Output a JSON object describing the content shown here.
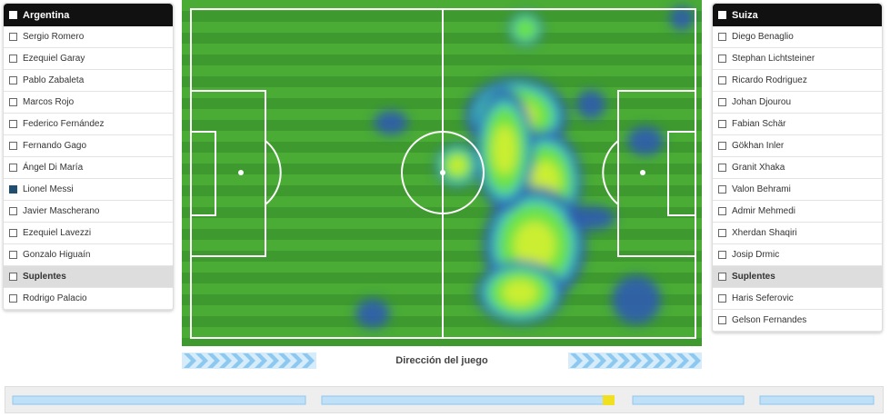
{
  "home": {
    "team": "Argentina",
    "players": [
      "Sergio Romero",
      "Ezequiel Garay",
      "Pablo Zabaleta",
      "Marcos Rojo",
      "Federico Fernández",
      "Fernando Gago",
      "Ángel Di María",
      "Lionel Messi",
      "Javier Mascherano",
      "Ezequiel Lavezzi",
      "Gonzalo Higuaín"
    ],
    "subs_label": "Suplentes",
    "subs": [
      "Rodrigo Palacio"
    ]
  },
  "away": {
    "team": "Suiza",
    "players": [
      "Diego Benaglio",
      "Stephan Lichtsteiner",
      "Ricardo Rodriguez",
      "Johan Djourou",
      "Fabian Schär",
      "Gökhan Inler",
      "Granit Xhaka",
      "Valon Behrami",
      "Admir Mehmedi",
      "Xherdan Shaqiri",
      "Josip Drmic"
    ],
    "subs_label": "Suplentes",
    "subs": [
      "Haris Seferovic",
      "Gelson Fernandes"
    ]
  },
  "direction_label": "Dirección del juego"
}
